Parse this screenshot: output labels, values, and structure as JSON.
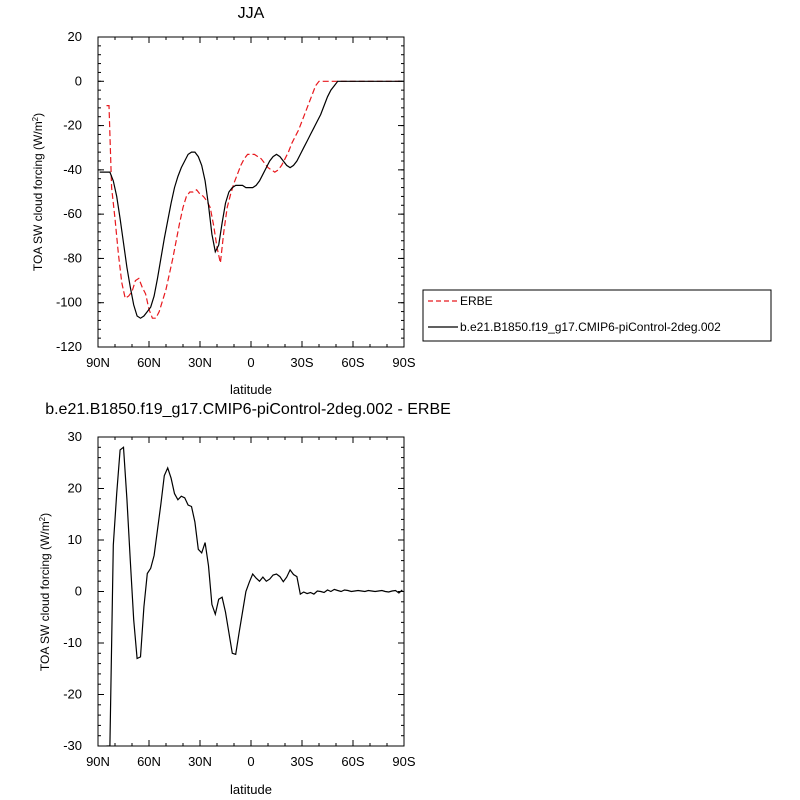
{
  "chart_data": [
    {
      "type": "line",
      "title": "JJA",
      "xlabel": "latitude",
      "ylabel": "TOA SW cloud forcing (W/m²)",
      "ylabel_base": "TOA SW cloud forcing (W/m",
      "ylabel_sup": "2",
      "ylabel_close": ")",
      "xlim": [
        90,
        -90
      ],
      "ylim": [
        -120,
        20
      ],
      "xticks": [
        {
          "value": 90,
          "label": "90N"
        },
        {
          "value": 60,
          "label": "60N"
        },
        {
          "value": 30,
          "label": "30N"
        },
        {
          "value": 0,
          "label": "0"
        },
        {
          "value": -30,
          "label": "30S"
        },
        {
          "value": -60,
          "label": "60S"
        },
        {
          "value": -90,
          "label": "90S"
        }
      ],
      "yticks": [
        {
          "value": 20,
          "label": "20"
        },
        {
          "value": 0,
          "label": "0"
        },
        {
          "value": -20,
          "label": "-20"
        },
        {
          "value": -40,
          "label": "-40"
        },
        {
          "value": -60,
          "label": "-60"
        },
        {
          "value": -80,
          "label": "-80"
        },
        {
          "value": -100,
          "label": "-100"
        },
        {
          "value": -120,
          "label": "-120"
        }
      ],
      "legend_position": "right",
      "series": [
        {
          "name": "ERBE",
          "color": "#e8191e",
          "dash": "dashed",
          "x": [
            85,
            83.5,
            82,
            80,
            78,
            76,
            74,
            72,
            70,
            68,
            66,
            64,
            62,
            60,
            58,
            56,
            54,
            52,
            50,
            48,
            46,
            44,
            42,
            40,
            38,
            36,
            34,
            32,
            30,
            28,
            26,
            24,
            22,
            20,
            18,
            16,
            14,
            12,
            10,
            8,
            6,
            4,
            2,
            0,
            -2,
            -4,
            -6,
            -8,
            -10,
            -12,
            -14,
            -16,
            -18,
            -20,
            -22,
            -24,
            -26,
            -28,
            -30,
            -32,
            -34,
            -36,
            -38,
            -40,
            -42,
            -44,
            -46,
            -48,
            -50,
            -52,
            -54,
            -56,
            -58,
            -60,
            -62,
            -64,
            -66,
            -68,
            -70,
            -72,
            -74,
            -76,
            -78,
            -80,
            -82,
            -84,
            -86,
            -88
          ],
          "y": [
            -11,
            -11,
            -48,
            -62,
            -78,
            -91,
            -98,
            -97,
            -95,
            -90,
            -89,
            -93,
            -96,
            -103,
            -107,
            -107,
            -104,
            -99,
            -94,
            -87,
            -80,
            -72,
            -64,
            -57,
            -52,
            -50,
            -50,
            -49,
            -51,
            -52,
            -54,
            -57,
            -65,
            -75,
            -82,
            -68,
            -57,
            -51,
            -46,
            -42,
            -38,
            -35,
            -33,
            -33,
            -33,
            -34,
            -35,
            -37,
            -39,
            -40,
            -41,
            -40,
            -38,
            -35,
            -32,
            -28,
            -25,
            -22,
            -18,
            -14,
            -10,
            -6,
            -2,
            0,
            0,
            0,
            0,
            0,
            0,
            0,
            0,
            0,
            0,
            0,
            0,
            0,
            0,
            0,
            0,
            0,
            0,
            0,
            0,
            0,
            0,
            0,
            0,
            0
          ]
        },
        {
          "name": "b.e21.B1850.f19_g17.CMIP6-piControl-2deg.002",
          "color": "#000000",
          "dash": "solid",
          "x": [
            89,
            85,
            83,
            81,
            79,
            77,
            75,
            73,
            71,
            69,
            67,
            65,
            63,
            61,
            59,
            57,
            55,
            53,
            51,
            49,
            47,
            45,
            43,
            41,
            39,
            37,
            35,
            33,
            31,
            29,
            27,
            25,
            23,
            21,
            19,
            17,
            15,
            13,
            11,
            9,
            7,
            5,
            3,
            1,
            -1,
            -3,
            -5,
            -7,
            -9,
            -11,
            -13,
            -15,
            -17,
            -19,
            -21,
            -23,
            -25,
            -27,
            -29,
            -31,
            -33,
            -35,
            -37,
            -39,
            -41,
            -43,
            -45,
            -47,
            -49,
            -51,
            -53,
            -55,
            -57,
            -59,
            -61,
            -63,
            -65,
            -67,
            -69,
            -71,
            -73,
            -75,
            -77,
            -79,
            -81,
            -83,
            -85,
            -87,
            -89
          ],
          "y": [
            -41,
            -41,
            -41,
            -45,
            -52,
            -62,
            -73,
            -84,
            -93,
            -101,
            -106,
            -107,
            -106,
            -104,
            -102,
            -97,
            -89,
            -80,
            -71,
            -63,
            -55,
            -48,
            -43,
            -39,
            -36,
            -33,
            -32,
            -32,
            -34,
            -38,
            -45,
            -56,
            -69,
            -77,
            -74,
            -64,
            -55,
            -50,
            -48,
            -47,
            -47,
            -47,
            -48,
            -48,
            -48,
            -47,
            -45,
            -42,
            -39,
            -36,
            -34,
            -33,
            -34,
            -36,
            -38,
            -39,
            -38,
            -36,
            -33,
            -30,
            -27,
            -24,
            -21,
            -18,
            -15,
            -11,
            -7,
            -4,
            -2,
            0,
            0,
            0,
            0,
            0,
            0,
            0,
            0,
            0,
            0,
            0,
            0,
            0,
            0,
            0,
            0,
            0,
            0,
            0,
            0
          ]
        }
      ]
    },
    {
      "type": "line",
      "title": "b.e21.B1850.f19_g17.CMIP6-piControl-2deg.002 - ERBE",
      "xlabel": "latitude",
      "ylabel": "TOA SW cloud forcing (W/m²)",
      "ylabel_base": "TOA SW cloud forcing (W/m",
      "ylabel_sup": "2",
      "ylabel_close": ")",
      "xlim": [
        90,
        -90
      ],
      "ylim": [
        -30,
        30
      ],
      "xticks": [
        {
          "value": 90,
          "label": "90N"
        },
        {
          "value": 60,
          "label": "60N"
        },
        {
          "value": 30,
          "label": "30N"
        },
        {
          "value": 0,
          "label": "0"
        },
        {
          "value": -30,
          "label": "30S"
        },
        {
          "value": -60,
          "label": "60S"
        },
        {
          "value": -90,
          "label": "90S"
        }
      ],
      "yticks": [
        {
          "value": 30,
          "label": "30"
        },
        {
          "value": 20,
          "label": "20"
        },
        {
          "value": 10,
          "label": "10"
        },
        {
          "value": 0,
          "label": "0"
        },
        {
          "value": -10,
          "label": "-10"
        },
        {
          "value": -20,
          "label": "-20"
        },
        {
          "value": -30,
          "label": "-30"
        }
      ],
      "series": [
        {
          "color": "#000000",
          "dash": "solid",
          "x": [
            85,
            83,
            81,
            79,
            77,
            75,
            73,
            71,
            69,
            67,
            65,
            63,
            61,
            59,
            57,
            55,
            53,
            51,
            49,
            47,
            45,
            43,
            41,
            39,
            37,
            35,
            33,
            31,
            29,
            27,
            25,
            23,
            21,
            19,
            17,
            15,
            13,
            11,
            9,
            7,
            5,
            3,
            1,
            -1,
            -3,
            -5,
            -7,
            -9,
            -11,
            -13,
            -15,
            -17,
            -19,
            -21,
            -23,
            -25,
            -27,
            -29,
            -31,
            -33,
            -35,
            -37,
            -39,
            -41,
            -43,
            -45,
            -47,
            -49,
            -51,
            -53,
            -55,
            -57,
            -59,
            -61,
            -63,
            -65,
            -67,
            -69,
            -71,
            -73,
            -75,
            -77,
            -79,
            -81,
            -83,
            -85,
            -87,
            -89
          ],
          "y": [
            -30,
            -30,
            9,
            19,
            27.5,
            28,
            18,
            6,
            -5.5,
            -13,
            -12.7,
            -3,
            3.5,
            4.5,
            7,
            12,
            17,
            22.5,
            24,
            22,
            19,
            17.8,
            18.5,
            18.2,
            16.8,
            16.5,
            13.5,
            8.2,
            7.5,
            9.5,
            5,
            -2.5,
            -4.4,
            -1.5,
            -1.1,
            -4,
            -8,
            -12,
            -12.2,
            -8,
            -4,
            0,
            1.8,
            3.4,
            2.6,
            2,
            2.8,
            2,
            2.4,
            3.2,
            3.4,
            2.9,
            1.9,
            2.8,
            4.2,
            3.3,
            2.9,
            -0.5,
            -0.1,
            -0.4,
            -0.2,
            -0.5,
            0.1,
            0,
            -0.2,
            0.3,
            0,
            0.4,
            0.2,
            0,
            0.3,
            0.2,
            0,
            0.1,
            0.2,
            0.1,
            0,
            0.2,
            0.1,
            0,
            0.1,
            0.2,
            0,
            -0.1,
            0.1,
            0.2,
            -0.3,
            0.3
          ]
        }
      ]
    }
  ]
}
